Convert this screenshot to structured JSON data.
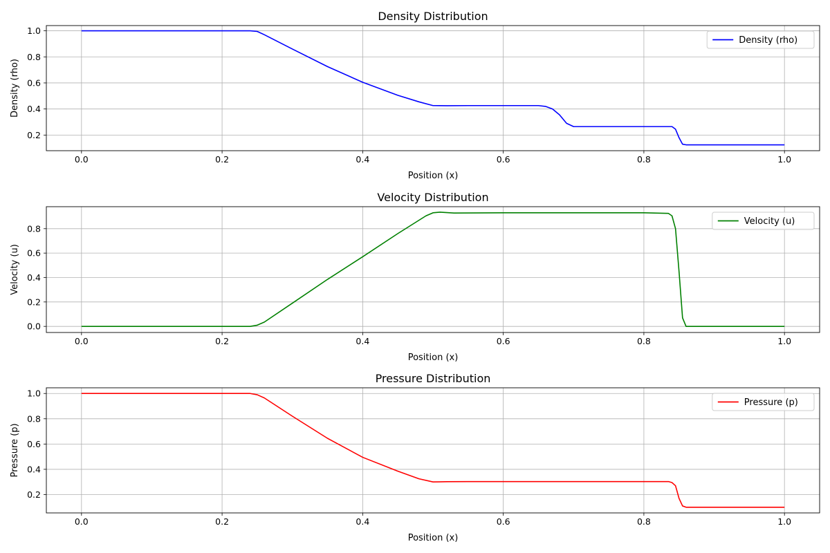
{
  "chart_data": [
    {
      "type": "line",
      "title": "Density Distribution",
      "xlabel": "Position (x)",
      "ylabel": "Density (rho)",
      "xlim": [
        -0.05,
        1.05
      ],
      "ylim": [
        0.08,
        1.04
      ],
      "xticks": [
        0.0,
        0.2,
        0.4,
        0.6,
        0.8,
        1.0
      ],
      "xtick_labels": [
        "0.0",
        "0.2",
        "0.4",
        "0.6",
        "0.8",
        "1.0"
      ],
      "yticks": [
        0.2,
        0.4,
        0.6,
        0.8,
        1.0
      ],
      "ytick_labels": [
        "0.2",
        "0.4",
        "0.6",
        "0.8",
        "1.0"
      ],
      "grid": true,
      "legend_position": "upper right",
      "series": [
        {
          "name": "Density (rho)",
          "color": "#0000ff",
          "x": [
            0,
            0.24,
            0.25,
            0.26,
            0.3,
            0.35,
            0.4,
            0.45,
            0.48,
            0.5,
            0.52,
            0.55,
            0.6,
            0.65,
            0.66,
            0.67,
            0.68,
            0.69,
            0.7,
            0.75,
            0.8,
            0.84,
            0.845,
            0.85,
            0.855,
            0.86,
            0.9,
            0.95,
            1.0
          ],
          "y": [
            1.0,
            1.0,
            0.995,
            0.97,
            0.86,
            0.725,
            0.605,
            0.505,
            0.455,
            0.426,
            0.425,
            0.426,
            0.426,
            0.426,
            0.42,
            0.4,
            0.355,
            0.29,
            0.265,
            0.265,
            0.265,
            0.265,
            0.245,
            0.18,
            0.13,
            0.125,
            0.125,
            0.125,
            0.125
          ]
        }
      ]
    },
    {
      "type": "line",
      "title": "Velocity Distribution",
      "xlabel": "Position (x)",
      "ylabel": "Velocity (u)",
      "xlim": [
        -0.05,
        1.05
      ],
      "ylim": [
        -0.05,
        0.98
      ],
      "xticks": [
        0.0,
        0.2,
        0.4,
        0.6,
        0.8,
        1.0
      ],
      "xtick_labels": [
        "0.0",
        "0.2",
        "0.4",
        "0.6",
        "0.8",
        "1.0"
      ],
      "yticks": [
        0.0,
        0.2,
        0.4,
        0.6,
        0.8
      ],
      "ytick_labels": [
        "0.0",
        "0.2",
        "0.4",
        "0.6",
        "0.8"
      ],
      "grid": true,
      "legend_position": "upper right",
      "series": [
        {
          "name": "Velocity (u)",
          "color": "#008000",
          "x": [
            0,
            0.24,
            0.25,
            0.26,
            0.3,
            0.35,
            0.4,
            0.45,
            0.49,
            0.5,
            0.51,
            0.53,
            0.6,
            0.7,
            0.8,
            0.835,
            0.84,
            0.845,
            0.85,
            0.855,
            0.86,
            0.9,
            1.0
          ],
          "y": [
            0.0,
            0.0,
            0.01,
            0.035,
            0.19,
            0.385,
            0.57,
            0.76,
            0.905,
            0.93,
            0.935,
            0.928,
            0.93,
            0.93,
            0.93,
            0.925,
            0.905,
            0.8,
            0.45,
            0.07,
            0.0,
            0.0,
            0.0
          ]
        }
      ]
    },
    {
      "type": "line",
      "title": "Pressure Distribution",
      "xlabel": "Position (x)",
      "ylabel": "Pressure (p)",
      "xlim": [
        -0.05,
        1.05
      ],
      "ylim": [
        0.055,
        1.045
      ],
      "xticks": [
        0.0,
        0.2,
        0.4,
        0.6,
        0.8,
        1.0
      ],
      "xtick_labels": [
        "0.0",
        "0.2",
        "0.4",
        "0.6",
        "0.8",
        "1.0"
      ],
      "yticks": [
        0.2,
        0.4,
        0.6,
        0.8,
        1.0
      ],
      "ytick_labels": [
        "0.2",
        "0.4",
        "0.6",
        "0.8",
        "1.0"
      ],
      "grid": true,
      "legend_position": "upper right",
      "series": [
        {
          "name": "Pressure (p)",
          "color": "#ff0000",
          "x": [
            0,
            0.24,
            0.25,
            0.26,
            0.3,
            0.35,
            0.4,
            0.45,
            0.48,
            0.5,
            0.52,
            0.55,
            0.6,
            0.7,
            0.8,
            0.835,
            0.84,
            0.845,
            0.85,
            0.855,
            0.86,
            0.9,
            1.0
          ],
          "y": [
            1.0,
            1.0,
            0.99,
            0.965,
            0.82,
            0.645,
            0.495,
            0.385,
            0.325,
            0.3,
            0.302,
            0.303,
            0.303,
            0.303,
            0.303,
            0.303,
            0.295,
            0.27,
            0.17,
            0.11,
            0.1,
            0.1,
            0.1
          ]
        }
      ]
    }
  ]
}
